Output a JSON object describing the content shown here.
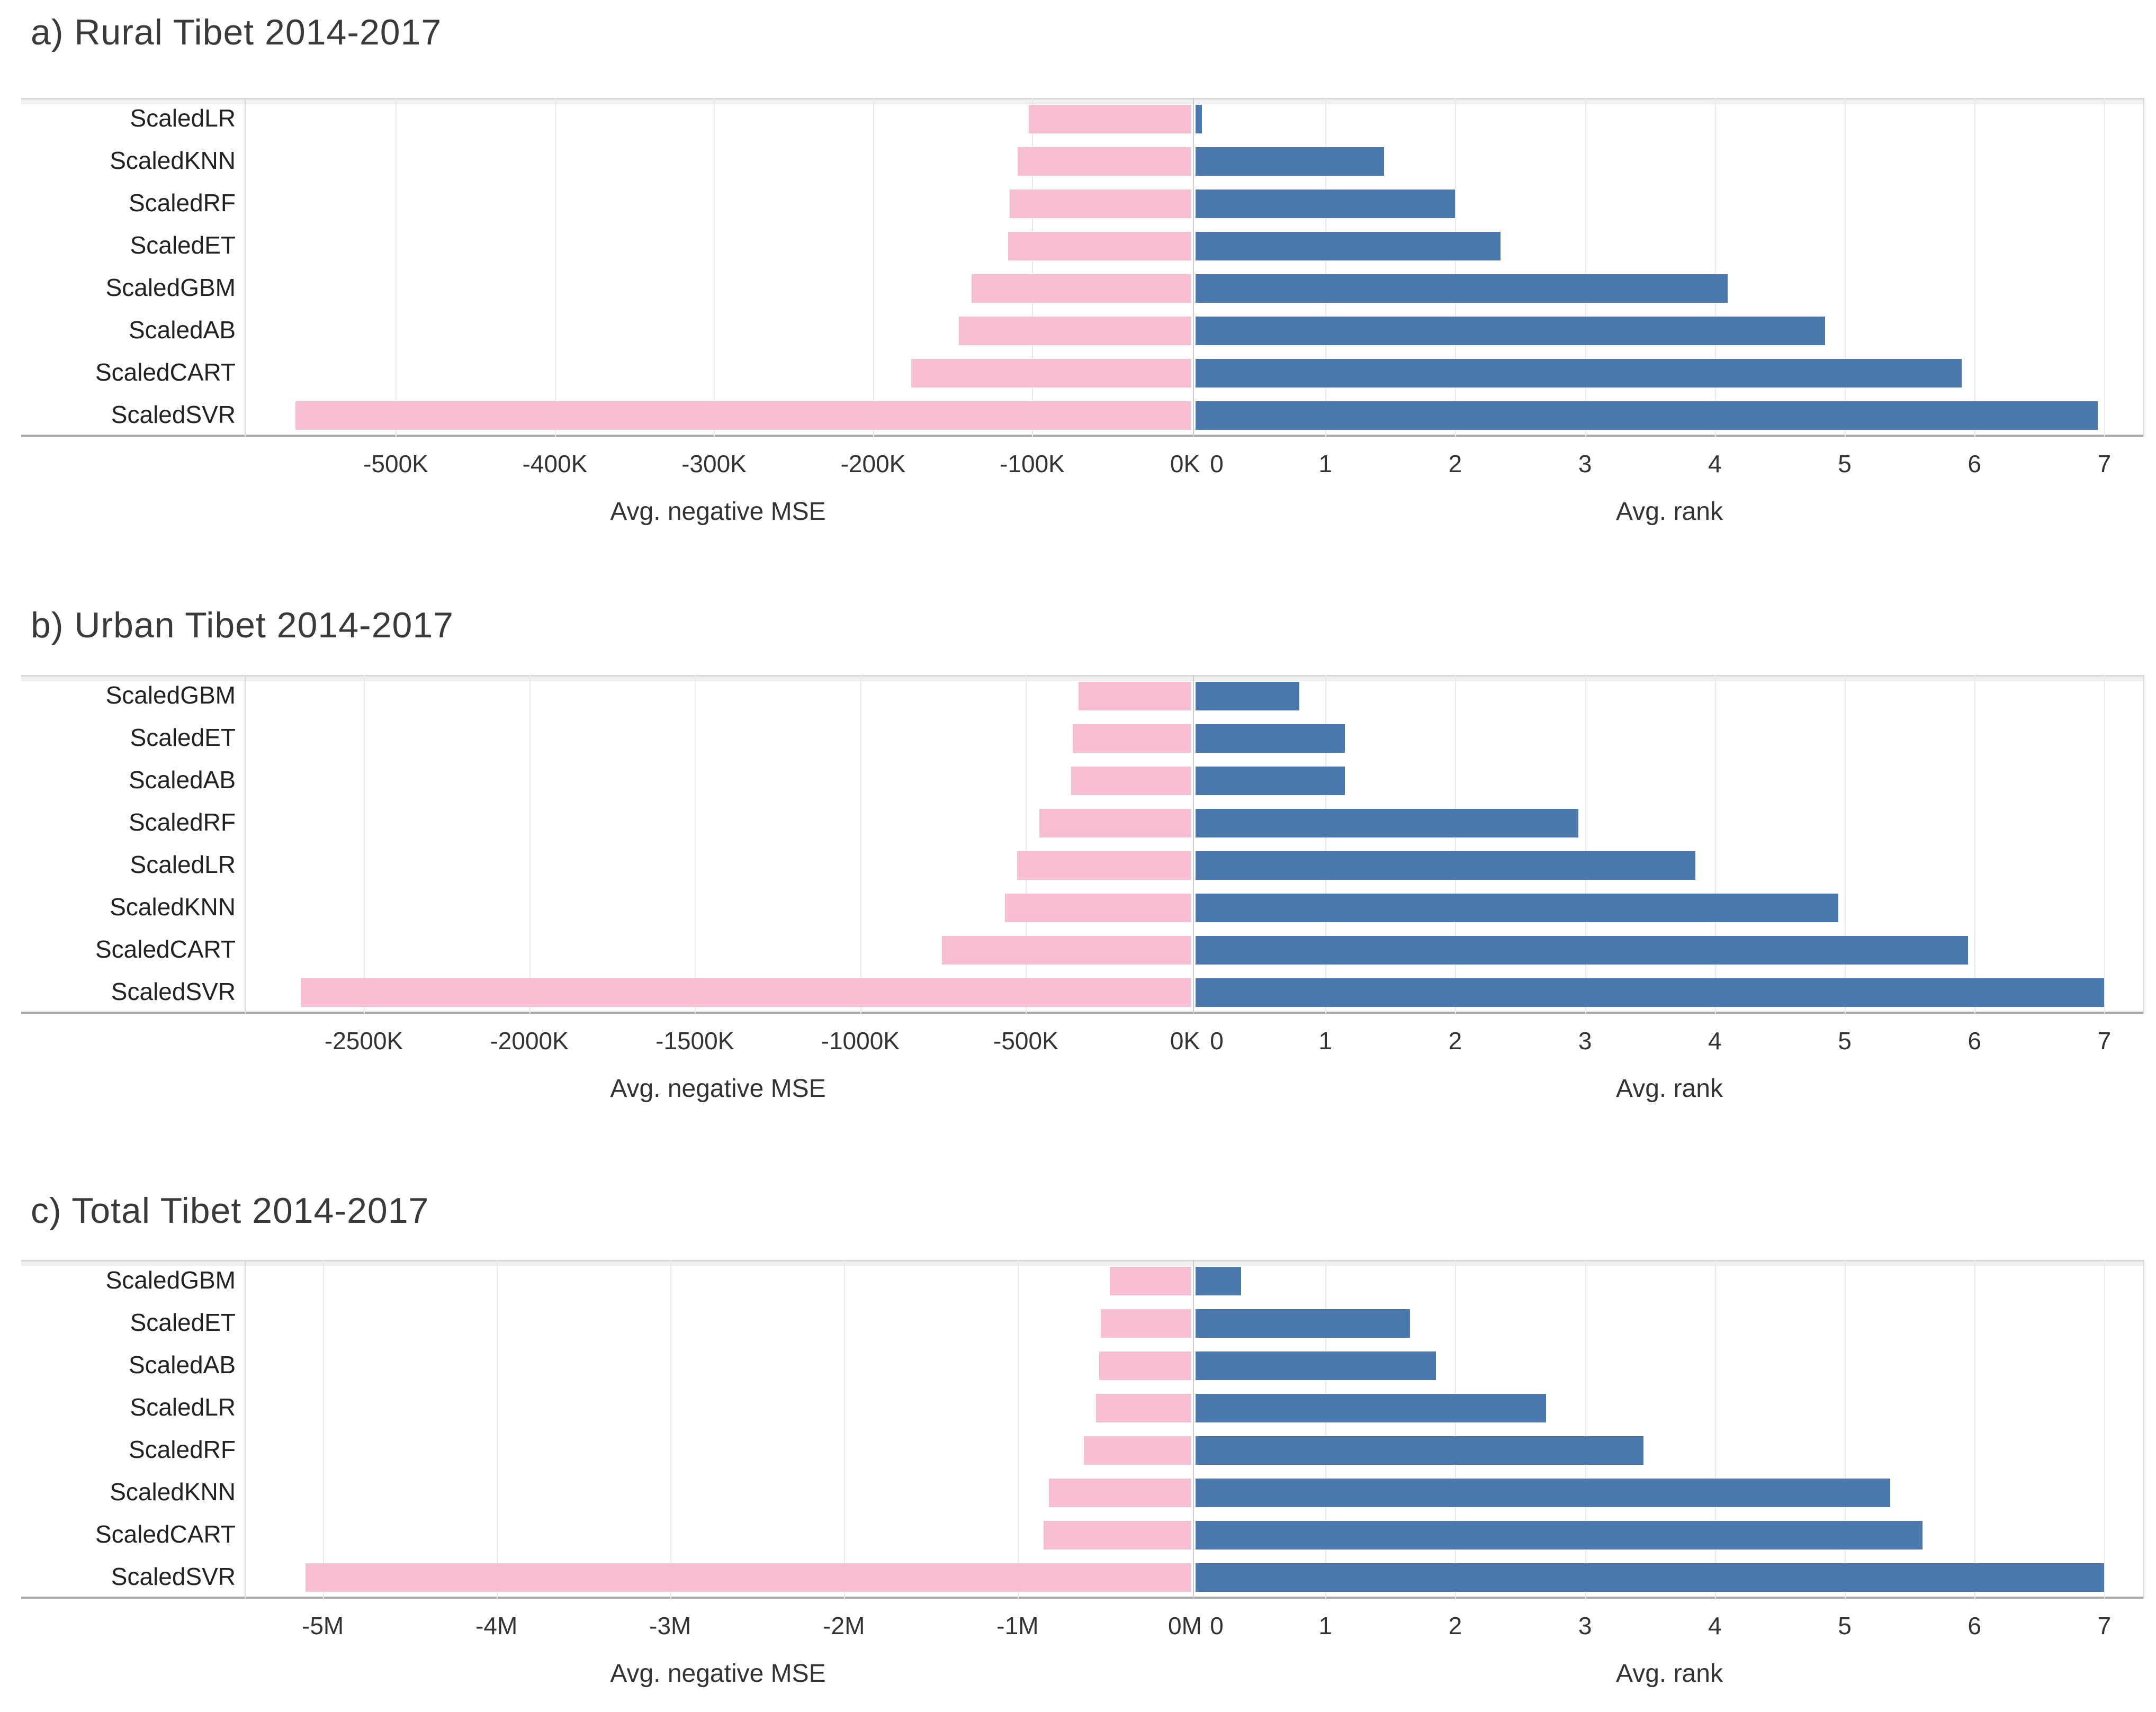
{
  "figure": {
    "background": "#ffffff",
    "description_titles": [
      "a) Rural Tibet 2014-2017",
      "b) Urban Tibet 2014-2017",
      "c) Total Tibet 2014-2017"
    ]
  },
  "colors": {
    "bar_pink": "#f8bfd2",
    "bar_blue": "#4b79ac",
    "grid": "#eaeaea",
    "plot_border": "#d9d9d9",
    "axis_bottom": "#a9a9a9",
    "zero_divider": "#cccccc",
    "title_text": "#3a3a3a",
    "label_text": "#222222",
    "tick_text": "#333333"
  },
  "chart_data": [
    {
      "type": "bar",
      "orientation": "horizontal-diverging",
      "title": "a) Rural Tibet 2014-2017",
      "categories": [
        "ScaledLR",
        "ScaledKNN",
        "ScaledRF",
        "ScaledET",
        "ScaledGBM",
        "ScaledAB",
        "ScaledCART",
        "ScaledSVR"
      ],
      "series": [
        {
          "name": "Avg. negative MSE",
          "axis": "left",
          "color_key": "bar_pink",
          "values": [
            -102000,
            -109000,
            -114000,
            -115000,
            -138000,
            -146000,
            -176000,
            -563000
          ]
        },
        {
          "name": "Avg. rank",
          "axis": "right",
          "color_key": "bar_blue",
          "values": [
            0.05,
            1.45,
            2.0,
            2.35,
            4.1,
            4.85,
            5.9,
            6.95
          ]
        }
      ],
      "left_axis": {
        "label": "Avg. negative MSE",
        "domain": [
          -595000,
          0
        ],
        "grid": true,
        "tick_values": [
          -500000,
          -400000,
          -300000,
          -200000,
          -100000,
          0
        ],
        "tick_labels": [
          "-500K",
          "-400K",
          "-300K",
          "-200K",
          "-100K",
          "0K"
        ]
      },
      "right_axis": {
        "label": "Avg. rank",
        "domain": [
          0,
          7.3
        ],
        "grid": true,
        "tick_values": [
          0,
          1,
          2,
          3,
          4,
          5,
          6,
          7
        ],
        "tick_labels": [
          "0",
          "1",
          "2",
          "3",
          "4",
          "5",
          "6",
          "7"
        ]
      }
    },
    {
      "type": "bar",
      "orientation": "horizontal-diverging",
      "title": "b) Urban Tibet 2014-2017",
      "categories": [
        "ScaledGBM",
        "ScaledET",
        "ScaledAB",
        "ScaledRF",
        "ScaledLR",
        "ScaledKNN",
        "ScaledCART",
        "ScaledSVR"
      ],
      "series": [
        {
          "name": "Avg. negative MSE",
          "axis": "left",
          "color_key": "bar_pink",
          "values": [
            -341000,
            -358000,
            -363000,
            -459000,
            -527000,
            -563000,
            -754000,
            -2690000
          ]
        },
        {
          "name": "Avg. rank",
          "axis": "right",
          "color_key": "bar_blue",
          "values": [
            0.8,
            1.15,
            1.15,
            2.95,
            3.85,
            4.95,
            5.95,
            7.0
          ]
        }
      ],
      "left_axis": {
        "label": "Avg. negative MSE",
        "domain": [
          -2860000,
          0
        ],
        "grid": true,
        "tick_values": [
          -2500000,
          -2000000,
          -1500000,
          -1000000,
          -500000,
          0
        ],
        "tick_labels": [
          "-2500K",
          "-2000K",
          "-1500K",
          "-1000K",
          "-500K",
          "0K"
        ]
      },
      "right_axis": {
        "label": "Avg. rank",
        "domain": [
          0,
          7.3
        ],
        "grid": true,
        "tick_values": [
          0,
          1,
          2,
          3,
          4,
          5,
          6,
          7
        ],
        "tick_labels": [
          "0",
          "1",
          "2",
          "3",
          "4",
          "5",
          "6",
          "7"
        ]
      }
    },
    {
      "type": "bar",
      "orientation": "horizontal-diverging",
      "title": "c) Total Tibet 2014-2017",
      "categories": [
        "ScaledGBM",
        "ScaledET",
        "ScaledAB",
        "ScaledLR",
        "ScaledRF",
        "ScaledKNN",
        "ScaledCART",
        "ScaledSVR"
      ],
      "series": [
        {
          "name": "Avg. negative MSE",
          "axis": "left",
          "color_key": "bar_pink",
          "values": [
            -470000,
            -520000,
            -530000,
            -550000,
            -620000,
            -820000,
            -850000,
            -5100000
          ]
        },
        {
          "name": "Avg. rank",
          "axis": "right",
          "color_key": "bar_blue",
          "values": [
            0.35,
            1.65,
            1.85,
            2.7,
            3.45,
            5.35,
            5.6,
            7.0
          ]
        }
      ],
      "left_axis": {
        "label": "Avg. negative MSE",
        "domain": [
          -5450000,
          0
        ],
        "grid": true,
        "tick_values": [
          -5000000,
          -4000000,
          -3000000,
          -2000000,
          -1000000,
          0
        ],
        "tick_labels": [
          "-5M",
          "-4M",
          "-3M",
          "-2M",
          "-1M",
          "0M"
        ]
      },
      "right_axis": {
        "label": "Avg. rank",
        "domain": [
          0,
          7.3
        ],
        "grid": true,
        "tick_values": [
          0,
          1,
          2,
          3,
          4,
          5,
          6,
          7
        ],
        "tick_labels": [
          "0",
          "1",
          "2",
          "3",
          "4",
          "5",
          "6",
          "7"
        ]
      }
    }
  ]
}
